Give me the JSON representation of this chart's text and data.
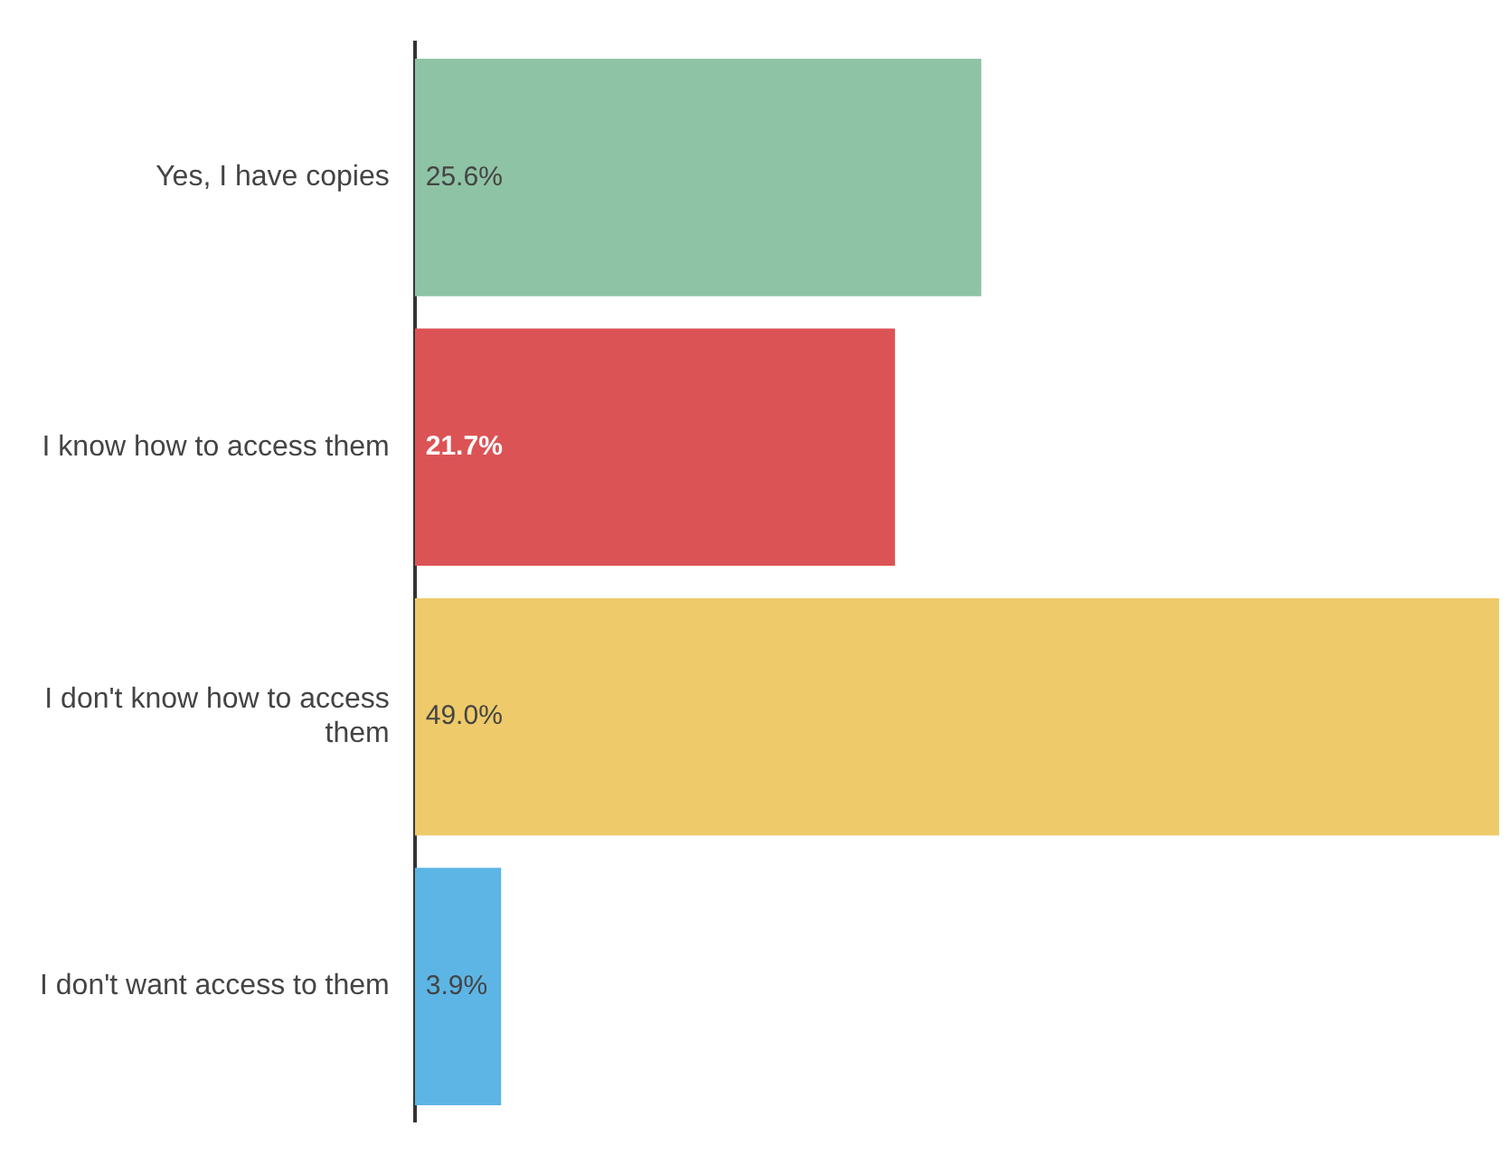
{
  "chart_data": {
    "type": "bar",
    "orientation": "horizontal",
    "legend": false,
    "categories": [
      "Yes, I have copies",
      "I know how to access them",
      "I don't know how to access them",
      "I don't want access to them"
    ],
    "values": [
      25.6,
      21.7,
      49.0,
      3.9
    ],
    "value_labels": [
      "25.6%",
      "21.7%",
      "49.0%",
      "3.9%"
    ],
    "colors": [
      "#8fc3a5",
      "#dc5355",
      "#eeca6a",
      "#5db5e5"
    ]
  }
}
